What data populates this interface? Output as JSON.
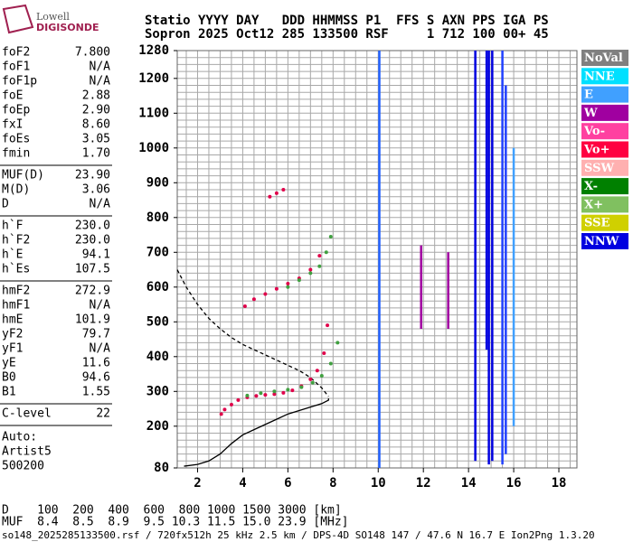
{
  "logo": {
    "line1": "Lowell",
    "line2": "DIGISONDE"
  },
  "header": {
    "line1": "Statio YYYY DAY   DDD HHMMSS P1  FFS S AXN PPS IGA PS",
    "line2": "Sopron 2025 Oct12 285 133500 RSF     1 712 100 00+ 45"
  },
  "params": [
    [
      [
        "foF2",
        "7.800"
      ],
      [
        "foF1",
        "N/A"
      ],
      [
        "foF1p",
        "N/A"
      ],
      [
        "foE",
        "2.88"
      ],
      [
        "foEp",
        "2.90"
      ],
      [
        "fxI",
        "8.60"
      ],
      [
        "foEs",
        "3.05"
      ],
      [
        "fmin",
        "1.70"
      ]
    ],
    [
      [
        "MUF(D)",
        "23.90"
      ],
      [
        "M(D)",
        "3.06"
      ],
      [
        "D",
        "N/A"
      ]
    ],
    [
      [
        "h`F",
        "230.0"
      ],
      [
        "h`F2",
        "230.0"
      ],
      [
        "h`E",
        "94.1"
      ],
      [
        "h`Es",
        "107.5"
      ]
    ],
    [
      [
        "hmF2",
        "272.9"
      ],
      [
        "hmF1",
        "N/A"
      ],
      [
        "hmE",
        "101.9"
      ],
      [
        "yF2",
        "79.7"
      ],
      [
        "yF1",
        "N/A"
      ],
      [
        "yE",
        "11.6"
      ],
      [
        "B0",
        "94.6"
      ],
      [
        "B1",
        "1.55"
      ]
    ],
    [
      [
        "C-level",
        "22"
      ]
    ]
  ],
  "notes": [
    "Auto:",
    "Artist5",
    "500200"
  ],
  "muf_table": [
    "D    100  200  400  600  800 1000 1500 3000 [km]",
    "MUF  8.4  8.5  8.9  9.5 10.3 11.5 15.0 23.9 [MHz]"
  ],
  "footer": "so148_2025285133500.rsf / 720fx512h 25 kHz 2.5 km / DPS-4D SO148 147 / 47.6 N 16.7 E Ion2Png 1.3.20",
  "chart_data": {
    "type": "scatter",
    "xlim": [
      1.1,
      18.8
    ],
    "ylim": [
      80,
      1280
    ],
    "xticks": [
      2,
      4,
      6,
      8,
      10,
      12,
      14,
      16,
      18
    ],
    "yticks": [
      80,
      200,
      300,
      400,
      500,
      600,
      700,
      800,
      900,
      1000,
      1100,
      1200,
      1280
    ],
    "xgrid": [
      1.5,
      2,
      2.5,
      3,
      3.5,
      4,
      4.5,
      5,
      5.5,
      6,
      6.5,
      7,
      7.5,
      8,
      8.5,
      9,
      9.5,
      10,
      10.5,
      11,
      11.5,
      12,
      12.5,
      13,
      13.5,
      14,
      14.5,
      15,
      15.5,
      16,
      16.5,
      17,
      17.5,
      18,
      18.5
    ],
    "ygrid": [
      100,
      120,
      140,
      160,
      180,
      200,
      220,
      240,
      260,
      280,
      300,
      320,
      340,
      360,
      380,
      400,
      420,
      440,
      460,
      480,
      500,
      520,
      540,
      560,
      580,
      600,
      620,
      640,
      660,
      680,
      700,
      720,
      740,
      760,
      780,
      800,
      820,
      840,
      860,
      880,
      900,
      920,
      940,
      960,
      980,
      1000,
      1020,
      1040,
      1060,
      1080,
      1100,
      1120,
      1140,
      1160,
      1180,
      1200,
      1220,
      1240,
      1260
    ],
    "legend": [
      {
        "label": "NoVal",
        "color": "#808080"
      },
      {
        "label": "NNE",
        "color": "#00e0ff"
      },
      {
        "label": "E",
        "color": "#40a0ff"
      },
      {
        "label": "W",
        "color": "#a000a0"
      },
      {
        "label": "Vo-",
        "color": "#ff40a0"
      },
      {
        "label": "Vo+",
        "color": "#ff0040"
      },
      {
        "label": "SSW",
        "color": "#ffb0b0"
      },
      {
        "label": "X-",
        "color": "#008000"
      },
      {
        "label": "X+",
        "color": "#80c060"
      },
      {
        "label": "SSE",
        "color": "#d0d000"
      },
      {
        "label": "NNW",
        "color": "#0000e0"
      }
    ],
    "series": [
      {
        "color": "#e0004a",
        "x": [
          3.05,
          3.2,
          3.5,
          3.8,
          4.2,
          4.6,
          5,
          5.4,
          5.8,
          6.2,
          6.6,
          7,
          7.3,
          7.6,
          7.75
        ],
        "values": [
          235,
          248,
          262,
          275,
          283,
          287,
          290,
          292,
          296,
          303,
          315,
          335,
          360,
          410,
          490
        ]
      },
      {
        "color": "#40a040",
        "x": [
          4.2,
          4.8,
          5.4,
          6,
          6.6,
          7.1,
          7.5,
          7.9,
          8.2
        ],
        "values": [
          288,
          295,
          300,
          305,
          312,
          325,
          345,
          380,
          440
        ]
      },
      {
        "color": "#e0004a",
        "x": [
          4.1,
          4.5,
          5,
          5.5,
          6,
          6.5,
          7,
          7.4
        ],
        "values": [
          545,
          565,
          580,
          595,
          610,
          625,
          650,
          690
        ]
      },
      {
        "color": "#40a040",
        "x": [
          6,
          6.5,
          7,
          7.4,
          7.7,
          7.9
        ],
        "values": [
          600,
          620,
          640,
          660,
          700,
          745
        ]
      },
      {
        "color": "#e0004a",
        "x": [
          5.2,
          5.5,
          5.8
        ],
        "values": [
          860,
          870,
          880
        ]
      }
    ],
    "profiles": [
      {
        "color": "#000000",
        "dashed": false,
        "x": [
          1.4,
          2,
          2.5,
          3,
          3.5,
          4,
          4.5,
          5,
          5.5,
          6,
          6.5,
          7,
          7.5,
          7.8,
          7.8
        ],
        "values": [
          85,
          90,
          100,
          120,
          150,
          175,
          190,
          205,
          220,
          235,
          245,
          255,
          265,
          275,
          280
        ]
      },
      {
        "color": "#000000",
        "dashed": true,
        "x": [
          1.1,
          1.5,
          2,
          2.5,
          3,
          3.5,
          4,
          4.5,
          5,
          5.5,
          6,
          6.5,
          7,
          7.5,
          7.8
        ],
        "values": [
          650,
          600,
          550,
          510,
          480,
          455,
          435,
          420,
          405,
          390,
          375,
          360,
          340,
          310,
          285
        ]
      }
    ],
    "streaks": [
      {
        "x": 14.3,
        "values": [
          100,
          1280
        ],
        "color": "#0000e0"
      },
      {
        "x": 14.8,
        "values": [
          420,
          1280
        ],
        "color": "#0000e0"
      },
      {
        "x": 14.9,
        "values": [
          90,
          1280
        ],
        "color": "#0000e0"
      },
      {
        "x": 15.05,
        "values": [
          100,
          1280
        ],
        "color": "#0000e0"
      },
      {
        "x": 15.5,
        "values": [
          90,
          1280
        ],
        "color": "#2040ff"
      },
      {
        "x": 15.65,
        "values": [
          120,
          1180
        ],
        "color": "#2040ff"
      },
      {
        "x": 11.9,
        "values": [
          480,
          720
        ],
        "color": "#a000a0"
      },
      {
        "x": 13.1,
        "values": [
          480,
          700
        ],
        "color": "#a000a0"
      },
      {
        "x": 10.05,
        "values": [
          80,
          1280
        ],
        "color": "#2060ff"
      },
      {
        "x": 16.0,
        "values": [
          200,
          1000
        ],
        "color": "#40a0ff"
      }
    ]
  }
}
